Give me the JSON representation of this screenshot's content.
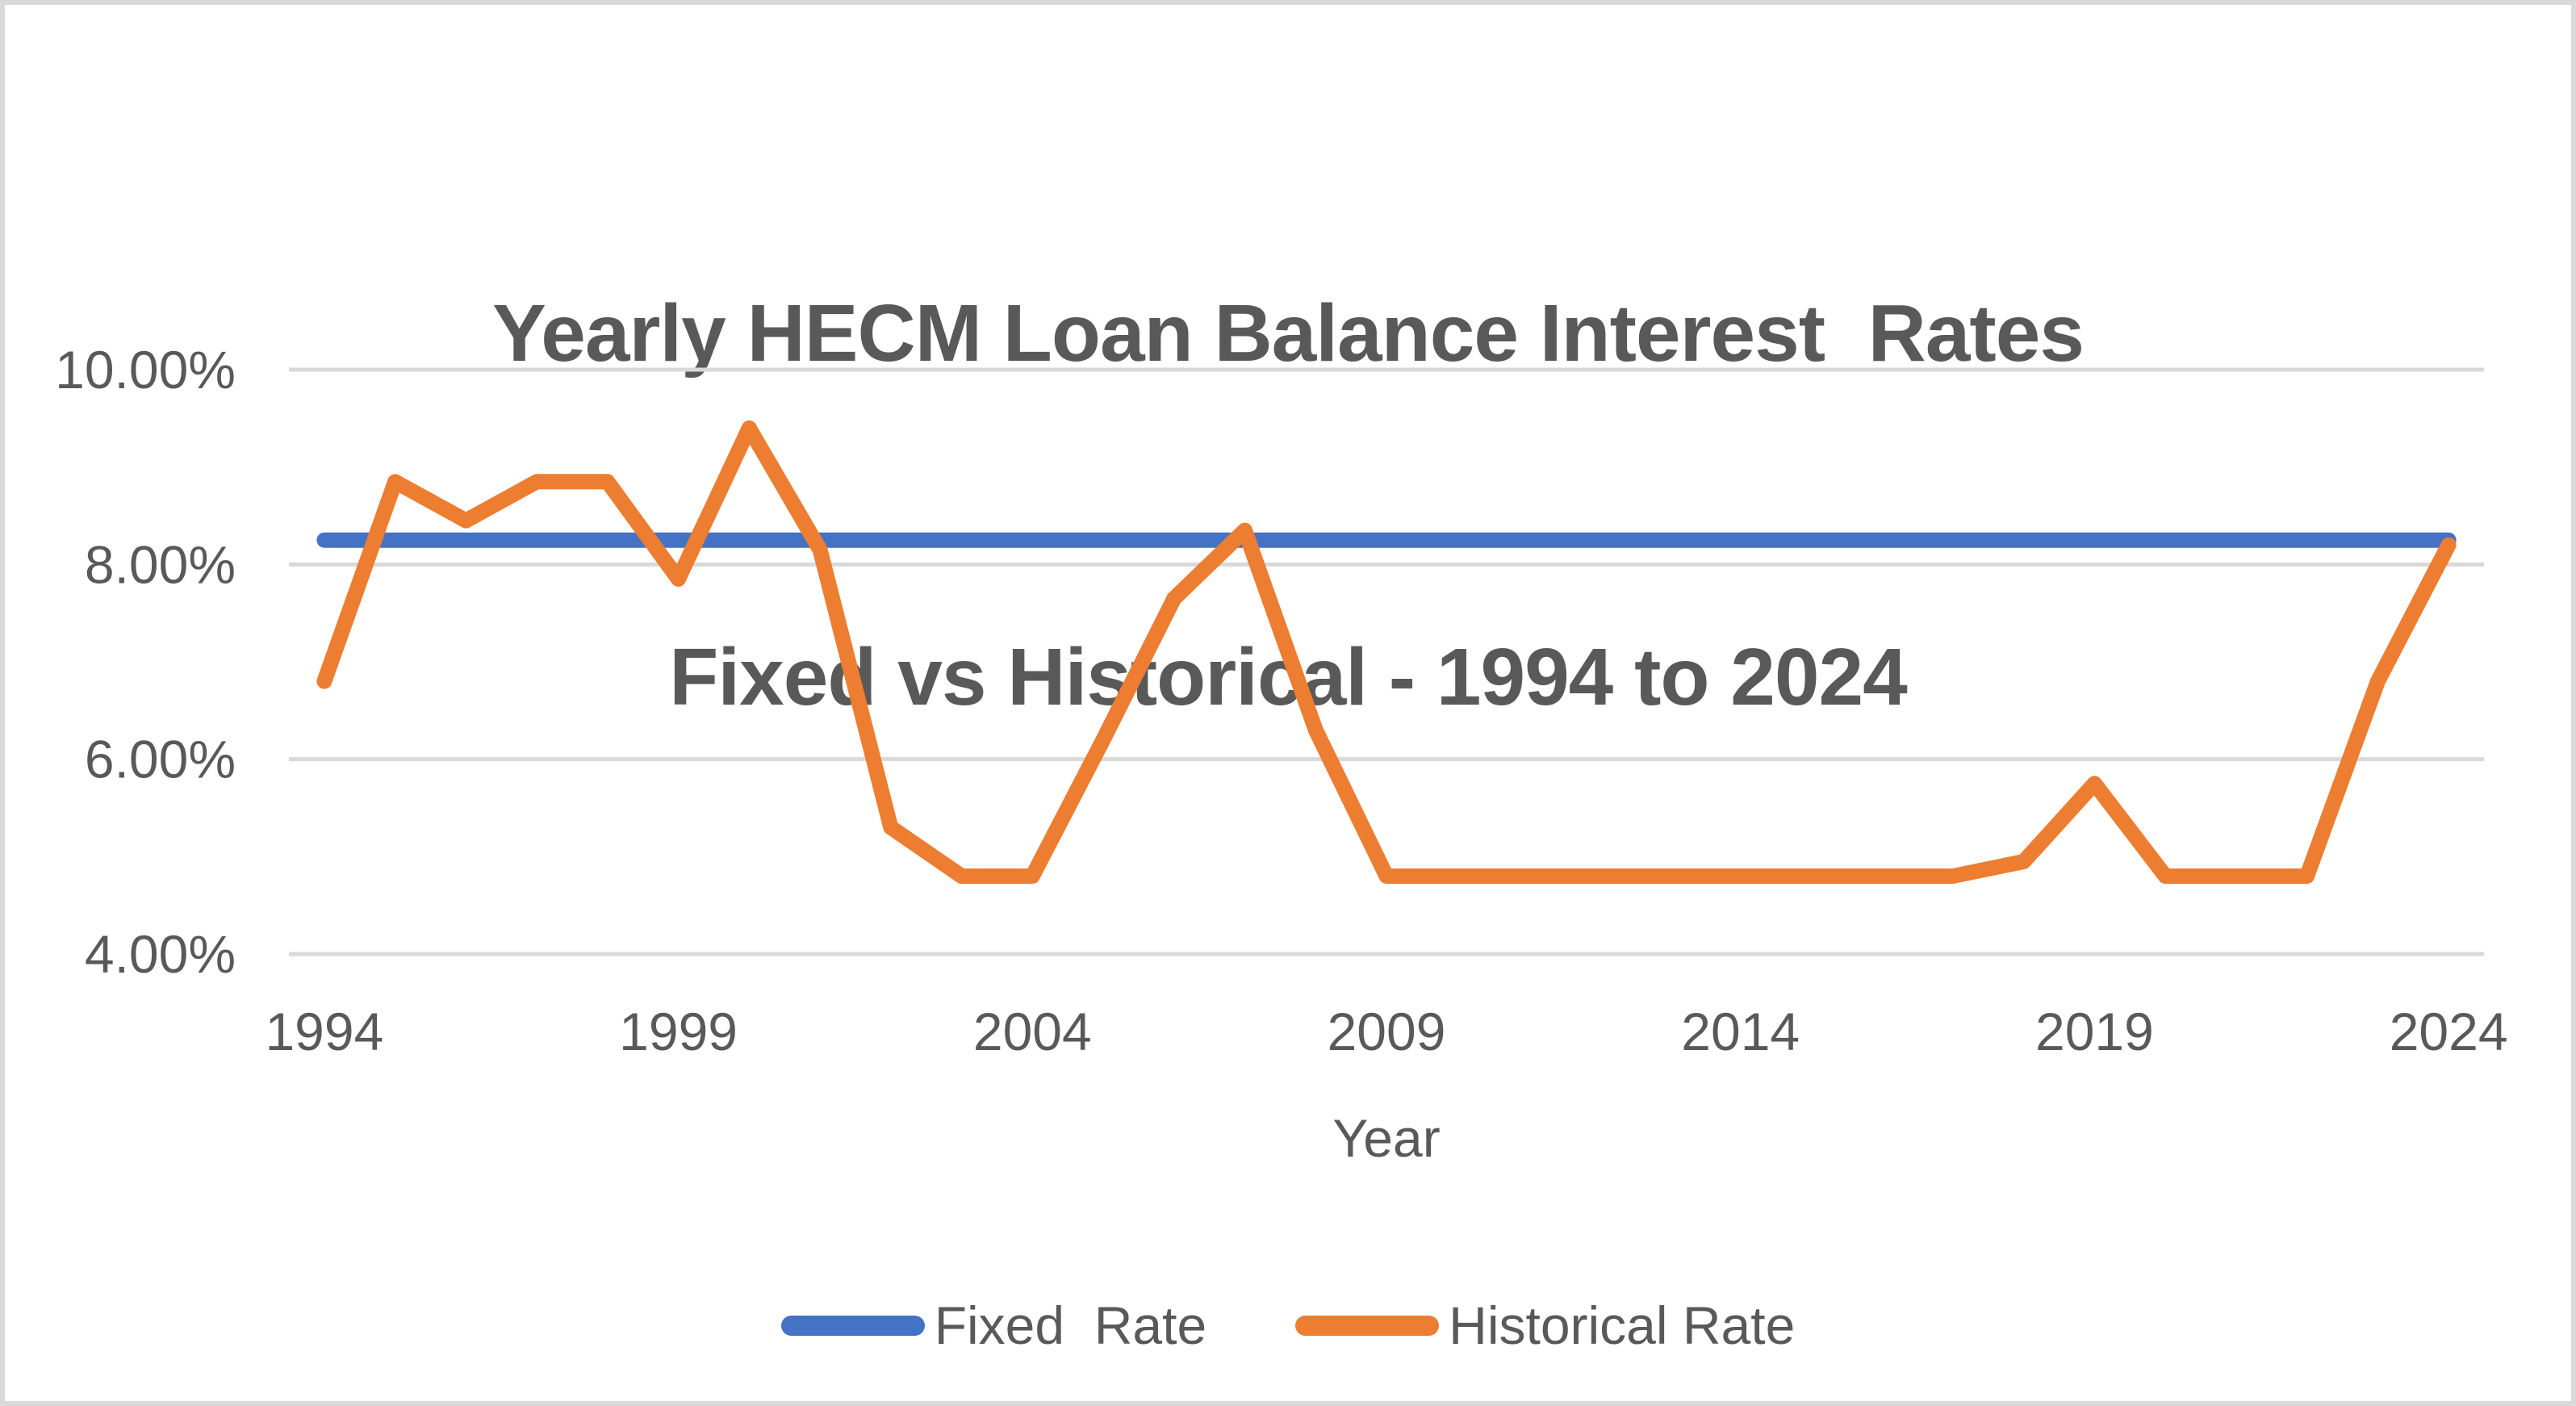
{
  "title": {
    "line1": "Yearly HECM Loan Balance Interest  Rates",
    "line2": "Fixed vs Historical - 1994 to 2024"
  },
  "axes": {
    "x_title": "Year",
    "y_ticks": [
      {
        "label": "10.00%",
        "value": 10
      },
      {
        "label": "8.00%",
        "value": 8
      },
      {
        "label": "6.00%",
        "value": 6
      },
      {
        "label": "4.00%",
        "value": 4
      }
    ],
    "x_ticks": [
      {
        "label": "1994",
        "year": 1994
      },
      {
        "label": "1999",
        "year": 1999
      },
      {
        "label": "2004",
        "year": 2004
      },
      {
        "label": "2009",
        "year": 2009
      },
      {
        "label": "2014",
        "year": 2014
      },
      {
        "label": "2019",
        "year": 2019
      },
      {
        "label": "2024",
        "year": 2024
      }
    ]
  },
  "legend": {
    "fixed_label": "Fixed  Rate",
    "historical_label": "Historical Rate"
  },
  "colors": {
    "fixed": "#4472C4",
    "historical": "#ED7D31",
    "gridline": "#D9D9D9",
    "text": "#595959",
    "background": "#FFFFFF"
  },
  "chart_data": {
    "type": "line",
    "title": "Yearly HECM Loan Balance Interest  Rates Fixed vs Historical - 1994 to 2024",
    "xlabel": "Year",
    "ylabel": "",
    "ylim": [
      4,
      10
    ],
    "grid": true,
    "legend_position": "bottom",
    "x": [
      1994,
      1995,
      1996,
      1997,
      1998,
      1999,
      2000,
      2001,
      2002,
      2003,
      2004,
      2005,
      2006,
      2007,
      2008,
      2009,
      2010,
      2011,
      2012,
      2013,
      2014,
      2015,
      2016,
      2017,
      2018,
      2019,
      2020,
      2021,
      2022,
      2023,
      2024
    ],
    "series": [
      {
        "name": "Fixed Rate",
        "values": [
          8.25,
          8.25,
          8.25,
          8.25,
          8.25,
          8.25,
          8.25,
          8.25,
          8.25,
          8.25,
          8.25,
          8.25,
          8.25,
          8.25,
          8.25,
          8.25,
          8.25,
          8.25,
          8.25,
          8.25,
          8.25,
          8.25,
          8.25,
          8.25,
          8.25,
          8.25,
          8.25,
          8.25,
          8.25,
          8.25,
          8.25
        ]
      },
      {
        "name": "Historical Rate",
        "values": [
          6.8,
          8.85,
          8.45,
          8.85,
          8.85,
          7.85,
          9.4,
          8.15,
          5.3,
          4.8,
          4.8,
          6.2,
          7.65,
          8.35,
          6.3,
          4.8,
          4.8,
          4.8,
          4.8,
          4.8,
          4.8,
          4.8,
          4.8,
          4.8,
          4.95,
          5.75,
          4.8,
          4.8,
          4.8,
          6.8,
          8.2
        ]
      }
    ]
  }
}
